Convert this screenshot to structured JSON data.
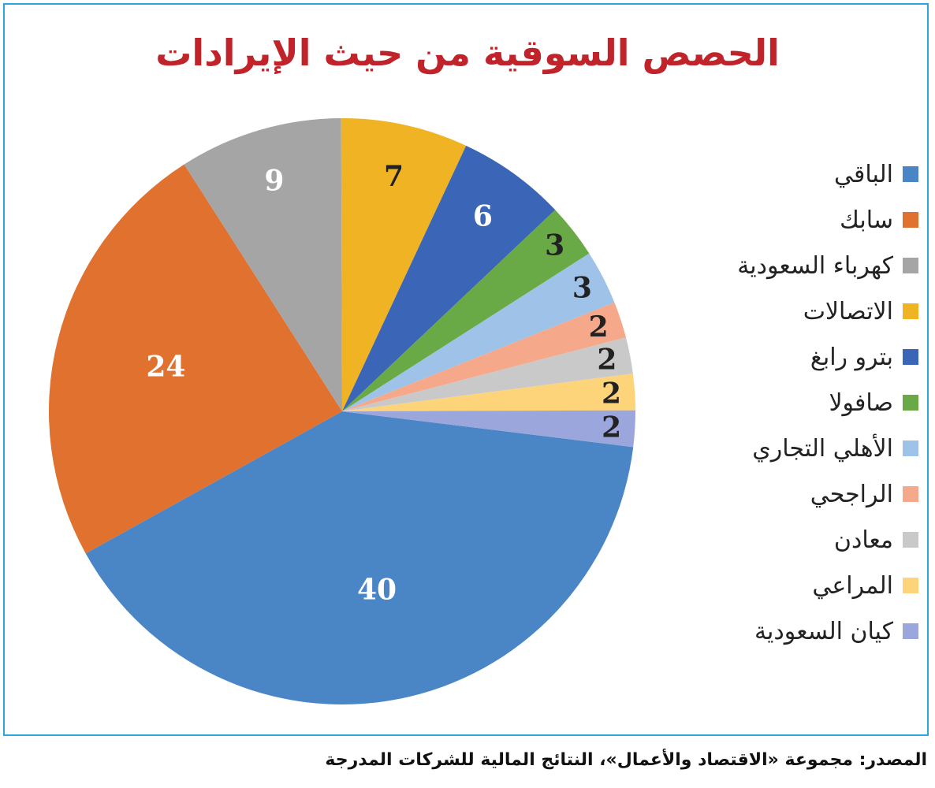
{
  "source": "المصدر: مجموعة «الاقتصاد والأعمال»، النتائج المالية للشركات المدرجة",
  "chart_data": {
    "type": "pie",
    "title": "الحصص السوقية من حيث الإيرادات",
    "legend_position": "right",
    "slices": [
      {
        "label": "الباقي",
        "value": 40,
        "color": "#4a86c6",
        "text_color": "#ffffff"
      },
      {
        "label": "سابك",
        "value": 24,
        "color": "#e0712e",
        "text_color": "#ffffff"
      },
      {
        "label": "كهرباء السعودية",
        "value": 9,
        "color": "#a5a5a5",
        "text_color": "#ffffff"
      },
      {
        "label": "الاتصالات",
        "value": 7,
        "color": "#f0b323",
        "text_color": "#222222"
      },
      {
        "label": "بترو رابغ",
        "value": 6,
        "color": "#3b66b8",
        "text_color": "#ffffff"
      },
      {
        "label": "صافولا",
        "value": 3,
        "color": "#6aaa46",
        "text_color": "#222222"
      },
      {
        "label": "الأهلي التجاري",
        "value": 3,
        "color": "#9fc2e8",
        "text_color": "#222222"
      },
      {
        "label": "الراجحي",
        "value": 2,
        "color": "#f5a98a",
        "text_color": "#222222"
      },
      {
        "label": "معادن",
        "value": 2,
        "color": "#c9c9c9",
        "text_color": "#222222"
      },
      {
        "label": "المراعي",
        "value": 2,
        "color": "#fdd47a",
        "text_color": "#222222"
      },
      {
        "label": "كيان السعودية",
        "value": 2,
        "color": "#9aa6dc",
        "text_color": "#222222"
      }
    ]
  }
}
